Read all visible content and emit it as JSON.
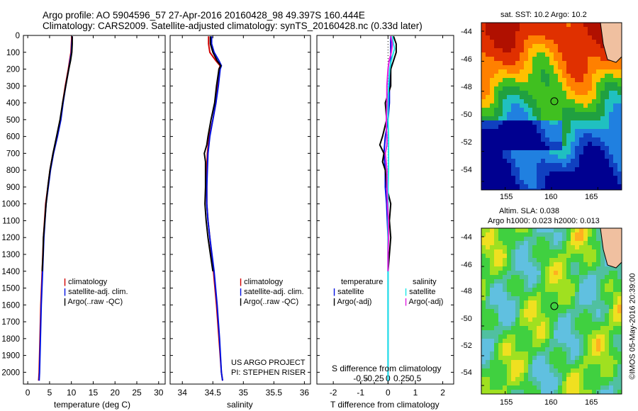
{
  "header": {
    "line1": "Argo profile: AO 5904596_57 27-Apr-2016 20160428_98 49.397S 160.444E",
    "line2": "Climatology: CARS2009. Satellite-adjusted climatology: synTS_20160428.nc (0.33d later)"
  },
  "colors": {
    "climatology": "#d00000",
    "satellite": "#0010e0",
    "argo": "#000000",
    "sal_satellite": "#20e8e8",
    "sal_argo": "#e020e0"
  },
  "chart_data": [
    {
      "type": "line",
      "id": "temperature",
      "xlabel": "temperature (deg C)",
      "ylabel": "",
      "xlim": [
        -1,
        31.5
      ],
      "ylim": [
        2070,
        0
      ],
      "xticks": [
        0,
        5,
        10,
        15,
        20,
        25,
        30
      ],
      "xtick_labels": [
        "0",
        "5",
        "10",
        "15",
        "20",
        "25",
        "30"
      ],
      "yticks": [
        0,
        100,
        200,
        300,
        400,
        500,
        600,
        700,
        800,
        900,
        1000,
        1100,
        1200,
        1300,
        1400,
        1500,
        1600,
        1700,
        1800,
        1900,
        2000
      ],
      "ytick_labels": [
        "0",
        "100",
        "200",
        "300",
        "400",
        "500",
        "600",
        "700",
        "800",
        "900",
        "1000",
        "1100",
        "1200",
        "1300",
        "1400",
        "1500",
        "1600",
        "1700",
        "1800",
        "1900",
        "2000"
      ],
      "legend": [
        "climatology",
        "satellite-adj. clim.",
        "Argo(..raw -QC)"
      ],
      "series": [
        {
          "name": "climatology",
          "depth": [
            5,
            50,
            100,
            150,
            200,
            300,
            400,
            500,
            600,
            700,
            800,
            900,
            1000,
            1200,
            1400,
            1600,
            1800,
            2000,
            2050
          ],
          "values": [
            10.1,
            10.0,
            9.9,
            9.6,
            9.3,
            8.6,
            8.0,
            7.5,
            6.7,
            5.8,
            5.1,
            4.6,
            4.1,
            3.6,
            3.3,
            3.0,
            2.8,
            2.6,
            2.5
          ]
        },
        {
          "name": "satellite-adj. clim.",
          "depth": [
            5,
            50,
            100,
            150,
            200,
            300,
            400,
            500,
            600,
            700,
            800,
            900,
            1000,
            1200,
            1400,
            1600,
            1800,
            2000,
            2050
          ],
          "values": [
            10.2,
            10.1,
            10.0,
            9.7,
            9.4,
            8.7,
            8.1,
            7.6,
            6.8,
            5.9,
            5.2,
            4.7,
            4.2,
            3.7,
            3.4,
            3.1,
            2.9,
            2.7,
            2.6
          ]
        },
        {
          "name": "Argo(..raw -QC)",
          "depth": [
            5,
            50,
            100,
            150,
            200,
            300,
            400,
            500,
            600,
            700,
            800,
            900,
            1000,
            1100,
            1200,
            1300,
            1400
          ],
          "values": [
            10.2,
            10.2,
            10.1,
            9.8,
            9.4,
            8.7,
            8.0,
            7.4,
            6.6,
            5.8,
            5.1,
            4.6,
            4.2,
            3.9,
            3.6,
            3.5,
            3.3
          ]
        }
      ]
    },
    {
      "type": "line",
      "id": "salinity",
      "xlabel": "salinity",
      "xlim": [
        33.8,
        36.1
      ],
      "ylim": [
        2070,
        0
      ],
      "xticks": [
        34,
        34.5,
        35,
        35.5,
        36
      ],
      "xtick_labels": [
        "34",
        "34.5",
        "35",
        "35.5",
        "36"
      ],
      "legend": [
        "climatology",
        "satellite-adj. clim.",
        "Argo(..raw -QC)"
      ],
      "annotation": [
        "US ARGO PROJECT",
        "PI: STEPHEN RISER"
      ],
      "series": [
        {
          "name": "climatology",
          "depth": [
            5,
            50,
            100,
            150,
            180,
            200,
            300,
            400,
            500,
            600,
            700,
            800,
            900,
            1000,
            1100,
            1200,
            1400,
            1600,
            1800,
            2000,
            2050
          ],
          "values": [
            34.43,
            34.43,
            34.45,
            34.55,
            34.62,
            34.6,
            34.58,
            34.55,
            34.5,
            34.44,
            34.41,
            34.4,
            34.4,
            34.4,
            34.42,
            34.45,
            34.51,
            34.56,
            34.6,
            34.64,
            34.66
          ]
        },
        {
          "name": "satellite-adj. clim.",
          "depth": [
            5,
            50,
            100,
            150,
            180,
            200,
            300,
            400,
            500,
            600,
            700,
            800,
            900,
            1000,
            1100,
            1200,
            1400,
            1600,
            1800,
            2000,
            2050
          ],
          "values": [
            34.48,
            34.48,
            34.52,
            34.6,
            34.64,
            34.62,
            34.59,
            34.55,
            34.5,
            34.45,
            34.42,
            34.41,
            34.4,
            34.4,
            34.42,
            34.45,
            34.52,
            34.57,
            34.61,
            34.64,
            34.66
          ]
        },
        {
          "name": "Argo(..raw -QC)",
          "depth": [
            5,
            50,
            100,
            150,
            180,
            200,
            300,
            400,
            500,
            600,
            650,
            700,
            750,
            800,
            900,
            1000,
            1100,
            1200,
            1300,
            1400
          ],
          "values": [
            34.46,
            34.46,
            34.5,
            34.57,
            34.63,
            34.6,
            34.56,
            34.53,
            34.47,
            34.42,
            34.4,
            34.36,
            34.38,
            34.38,
            34.38,
            34.37,
            34.39,
            34.42,
            34.46,
            34.5
          ]
        }
      ]
    },
    {
      "type": "line",
      "id": "differences",
      "xlabel": "T difference from climatology",
      "xlabel_top": "S difference from climatology",
      "xlim": [
        -2.6,
        2.4
      ],
      "ylim": [
        2070,
        0
      ],
      "xticks": [
        -2,
        -1,
        0,
        1,
        2
      ],
      "xtick_labels": [
        "-2",
        "-1",
        "0",
        "1",
        "2"
      ],
      "s_ticks": [
        -0.5,
        -0.25,
        0,
        0.25,
        0.5
      ],
      "s_tick_labels": [
        "-0.5",
        "-0.25",
        "0",
        "0.25",
        "0.5"
      ],
      "legend_left_title": "temperature",
      "legend_left": [
        "satellite",
        "Argo(-adj)"
      ],
      "legend_right_title": "salinity",
      "legend_right": [
        "satellite",
        "Argo(-adj)"
      ],
      "series": [
        {
          "name": "T satellite",
          "depth": [
            5,
            100,
            200,
            300,
            400,
            500,
            600,
            700,
            800,
            900,
            1000,
            1200,
            1400,
            1600,
            1800,
            2000,
            2050
          ],
          "values": [
            0.1,
            0.1,
            0.1,
            0.05,
            0.05,
            0,
            -0.1,
            -0.15,
            -0.1,
            -0.1,
            -0.05,
            0,
            0,
            0,
            0,
            0,
            0
          ]
        },
        {
          "name": "T Argo(-adj)",
          "depth": [
            5,
            50,
            100,
            150,
            200,
            300,
            400,
            500,
            600,
            650,
            700,
            750,
            800,
            900,
            1000,
            1100,
            1200,
            1300,
            1400
          ],
          "values": [
            0.2,
            0.3,
            0.3,
            0.2,
            0.1,
            0.1,
            -0.1,
            -0.05,
            -0.2,
            -0.3,
            -0.15,
            -0.2,
            -0.1,
            -0.05,
            0.1,
            0.05,
            0.1,
            0.05,
            0
          ]
        },
        {
          "name": "S satellite",
          "depth": [
            5,
            50,
            80,
            100,
            150,
            200,
            300,
            400,
            500,
            600,
            700,
            800,
            900,
            1000,
            1200,
            1400,
            1600,
            1800,
            2000,
            2050
          ],
          "values": [
            0.08,
            0.1,
            0.12,
            0.1,
            0.06,
            0.03,
            0.01,
            0,
            0,
            0.01,
            0.01,
            0.01,
            0,
            0,
            0,
            0,
            0,
            0,
            0,
            0
          ]
        },
        {
          "name": "S Argo(-adj)",
          "depth": [
            5,
            50,
            100,
            150,
            200,
            300,
            400,
            500,
            550,
            600,
            650,
            700,
            800,
            900,
            1000,
            1100,
            1200,
            1300,
            1400
          ],
          "values": [
            0.05,
            0.08,
            0.06,
            0.02,
            0,
            -0.02,
            -0.02,
            -0.03,
            -0.03,
            -0.02,
            -0.02,
            -0.05,
            -0.02,
            -0.02,
            -0.01,
            0.01,
            0.01,
            0,
            0
          ]
        }
      ]
    }
  ],
  "maps": {
    "sst": {
      "title": "sat. SST: 10.2 Argo: 10.2",
      "y_ticks": [
        "-44",
        "-46",
        "-48",
        "-50",
        "-52",
        "-54"
      ],
      "x_ticks": [
        "155",
        "160",
        "165"
      ]
    },
    "sla": {
      "title_line1": "Altim. SLA: 0.038",
      "title_line2": "Argo h1000: 0.023 h2000: 0.013",
      "y_ticks": [
        "-44",
        "-46",
        "-48",
        "-50",
        "-52",
        "-54"
      ],
      "x_ticks": [
        "155",
        "160",
        "165"
      ]
    }
  },
  "footer": {
    "credit": "©IMOS 05-May-2016 20:39:00"
  }
}
